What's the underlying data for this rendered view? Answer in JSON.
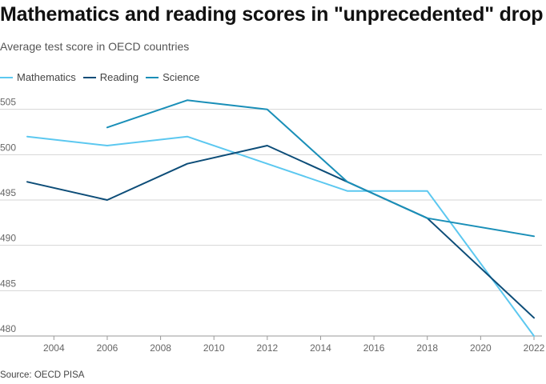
{
  "title": "Mathematics and reading scores in \"unprecedented\" drop",
  "subtitle": "Average test score in OECD countries",
  "source": "Source: OECD PISA",
  "colors": {
    "mathematics": "#5cc8f0",
    "reading": "#0d4d78",
    "science": "#1a8fb8",
    "grid": "#d6d6d6",
    "tick": "#666666"
  },
  "chart_data": {
    "type": "line",
    "title": "Mathematics and reading scores in \"unprecedented\" drop",
    "subtitle": "Average test score in OECD countries",
    "xlabel": "",
    "ylabel": "",
    "xlim": [
      2003,
      2022
    ],
    "ylim": [
      480,
      507
    ],
    "x_ticks": [
      2004,
      2006,
      2008,
      2010,
      2012,
      2014,
      2016,
      2018,
      2020,
      2022
    ],
    "y_ticks": [
      480,
      485,
      490,
      495,
      500,
      505
    ],
    "grid": "horizontal",
    "legend": "top-left",
    "series": [
      {
        "name": "Mathematics",
        "color": "#5cc8f0",
        "points": [
          [
            2003,
            502
          ],
          [
            2006,
            501
          ],
          [
            2009,
            502
          ],
          [
            2012,
            499
          ],
          [
            2015,
            496
          ],
          [
            2018,
            496
          ],
          [
            2022,
            480
          ]
        ]
      },
      {
        "name": "Reading",
        "color": "#0d4d78",
        "points": [
          [
            2003,
            497
          ],
          [
            2006,
            495
          ],
          [
            2009,
            499
          ],
          [
            2012,
            501
          ],
          [
            2015,
            497
          ],
          [
            2018,
            493
          ],
          [
            2022,
            482
          ]
        ]
      },
      {
        "name": "Science",
        "color": "#1a8fb8",
        "points": [
          [
            2006,
            503
          ],
          [
            2009,
            506
          ],
          [
            2012,
            505
          ],
          [
            2015,
            497
          ],
          [
            2018,
            493
          ],
          [
            2022,
            491
          ]
        ]
      }
    ]
  }
}
